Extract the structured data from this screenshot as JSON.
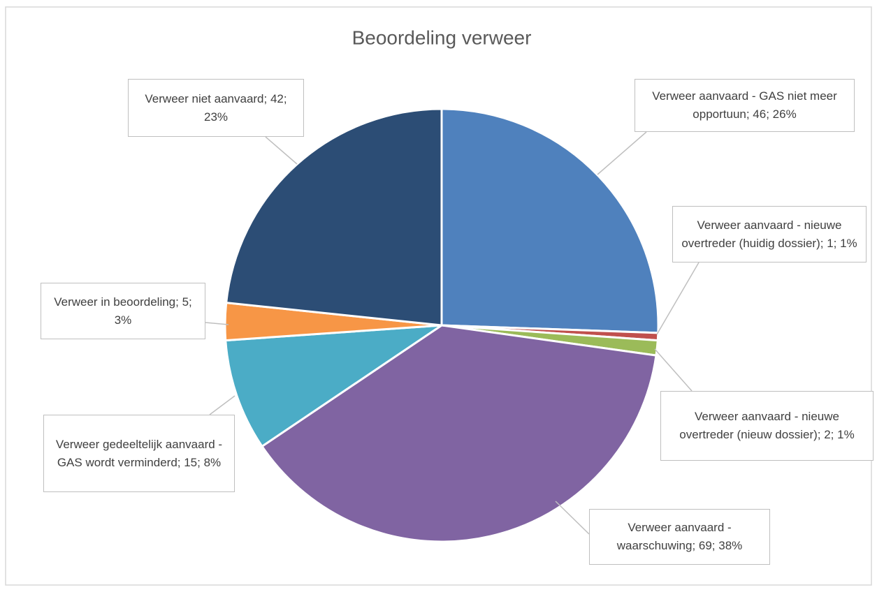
{
  "chart_data": {
    "type": "pie",
    "title": "Beoordeling verweer",
    "values": [
      46,
      1,
      2,
      69,
      15,
      5,
      42
    ],
    "value_labels": [
      "Verweer aanvaard - GAS niet meer opportuun; 46; 26%",
      "Verweer aanvaard - nieuwe overtreder (huidig dossier); 1; 1%",
      "Verweer aanvaard - nieuwe overtreder (nieuw dossier); 2; 1%",
      "Verweer aanvaard - waarschuwing; 69; 38%",
      "Verweer gedeeltelijk aanvaard - GAS wordt verminderd; 15; 8%",
      "Verweer in beoordeling; 5; 3%",
      "Verweer niet aanvaard; 42; 23%"
    ],
    "colors": [
      "#4f81bd",
      "#c0504d",
      "#9bbb59",
      "#8064a2",
      "#4bacc6",
      "#f79646",
      "#2c4d75"
    ]
  }
}
